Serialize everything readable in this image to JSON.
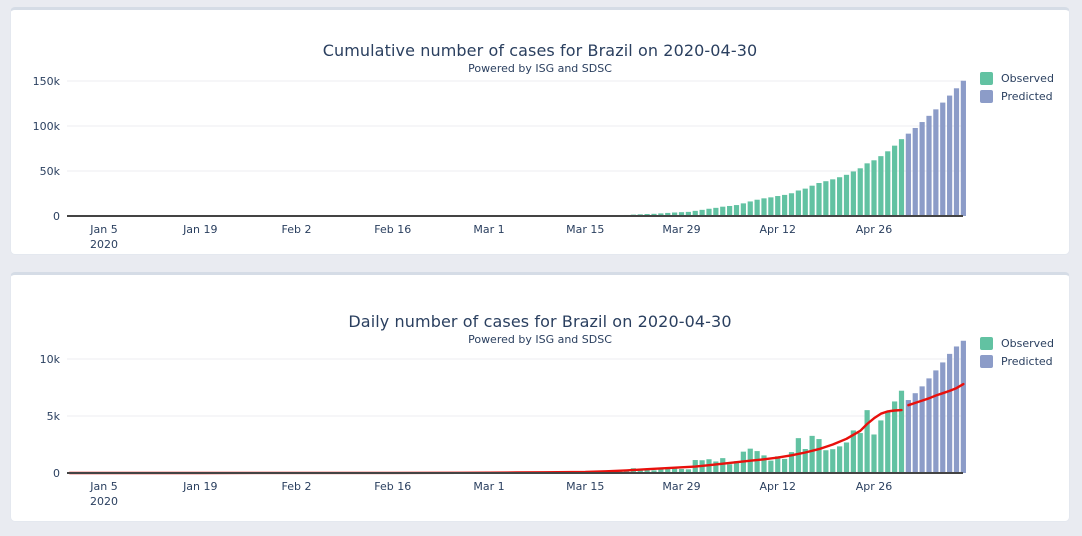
{
  "colors": {
    "observed": "#62c2a2",
    "predicted": "#8c9cc8",
    "trend": "#e8100c",
    "axis": "#444444",
    "grid": "#ececf1",
    "text": "#2a3f5f",
    "page_background": "#e9ebf1",
    "card_background": "#ffffff",
    "card_top_strip": "#d5dce6"
  },
  "chart_data": [
    {
      "type": "bar",
      "title": "Cumulative number of cases for Brazil on 2020-04-30",
      "subtitle": "Powered by ISG and SDSC",
      "xlabel": "",
      "ylabel": "",
      "grid": true,
      "legend_position": "top-right",
      "ylim": [
        0,
        157000
      ],
      "yticks": [
        {
          "value": 0,
          "label": "0"
        },
        {
          "value": 50000,
          "label": "50k"
        },
        {
          "value": 100000,
          "label": "100k"
        },
        {
          "value": 150000,
          "label": "150k"
        }
      ],
      "xticks": [
        {
          "date": "2020-01-05",
          "label": "Jan 5",
          "sublabel": "2020"
        },
        {
          "date": "2020-01-19",
          "label": "Jan 19"
        },
        {
          "date": "2020-02-02",
          "label": "Feb 2"
        },
        {
          "date": "2020-02-16",
          "label": "Feb 16"
        },
        {
          "date": "2020-03-01",
          "label": "Mar 1"
        },
        {
          "date": "2020-03-15",
          "label": "Mar 15"
        },
        {
          "date": "2020-03-29",
          "label": "Mar 29"
        },
        {
          "date": "2020-04-12",
          "label": "Apr 12"
        },
        {
          "date": "2020-04-26",
          "label": "Apr 26"
        }
      ],
      "series": [
        {
          "name": "Observed",
          "color_key": "observed",
          "start_date": "2020-02-26",
          "values": [
            1,
            1,
            1,
            2,
            2,
            2,
            2,
            4,
            4,
            13,
            20,
            25,
            25,
            34,
            52,
            77,
            151,
            151,
            200,
            234,
            346,
            529,
            654,
            904,
            1128,
            1546,
            1891,
            2201,
            2433,
            2915,
            3417,
            3904,
            4256,
            4579,
            5717,
            6836,
            8044,
            9056,
            10360,
            11130,
            12161,
            14034,
            16170,
            18092,
            19638,
            20727,
            22192,
            23430,
            25262,
            28320,
            30425,
            33682,
            36658,
            38654,
            40743,
            43079,
            45757,
            49492,
            52995,
            58509,
            61888,
            66501,
            71886,
            78162,
            85380
          ]
        },
        {
          "name": "Predicted",
          "color_key": "predicted",
          "start_date": "2020-05-01",
          "values": [
            91500,
            97800,
            104400,
            111300,
            118500,
            126000,
            133800,
            141900,
            150300
          ]
        }
      ]
    },
    {
      "type": "bar",
      "title": "Daily number of cases for Brazil on 2020-04-30",
      "subtitle": "Powered by ISG and SDSC",
      "xlabel": "",
      "ylabel": "",
      "grid": true,
      "legend_position": "top-right",
      "ylim": [
        0,
        12000
      ],
      "yticks": [
        {
          "value": 0,
          "label": "0"
        },
        {
          "value": 5000,
          "label": "5k"
        },
        {
          "value": 10000,
          "label": "10k"
        }
      ],
      "xticks": [
        {
          "date": "2020-01-05",
          "label": "Jan 5",
          "sublabel": "2020"
        },
        {
          "date": "2020-01-19",
          "label": "Jan 19"
        },
        {
          "date": "2020-02-02",
          "label": "Feb 2"
        },
        {
          "date": "2020-02-16",
          "label": "Feb 16"
        },
        {
          "date": "2020-03-01",
          "label": "Mar 1"
        },
        {
          "date": "2020-03-15",
          "label": "Mar 15"
        },
        {
          "date": "2020-03-29",
          "label": "Mar 29"
        },
        {
          "date": "2020-04-12",
          "label": "Apr 12"
        },
        {
          "date": "2020-04-26",
          "label": "Apr 26"
        }
      ],
      "series": [
        {
          "name": "Observed",
          "color_key": "observed",
          "start_date": "2020-02-26",
          "values": [
            1,
            0,
            0,
            1,
            0,
            0,
            0,
            2,
            0,
            9,
            7,
            5,
            0,
            9,
            18,
            25,
            74,
            0,
            49,
            34,
            112,
            183,
            125,
            250,
            224,
            418,
            345,
            310,
            232,
            482,
            502,
            487,
            352,
            323,
            1138,
            1119,
            1208,
            1012,
            1304,
            770,
            1031,
            1873,
            2136,
            1922,
            1546,
            1089,
            1465,
            1238,
            1832,
            3058,
            2105,
            3257,
            2976,
            1996,
            2089,
            2336,
            2678,
            3735,
            3503,
            5514,
            3379,
            4613,
            5385,
            6276,
            7218
          ]
        },
        {
          "name": "Predicted",
          "color_key": "predicted",
          "start_date": "2020-05-01",
          "values": [
            6400,
            7000,
            7600,
            8300,
            9000,
            9700,
            10450,
            11100,
            11600
          ]
        }
      ],
      "trend": {
        "name": "trend-line",
        "segments": [
          {
            "dates": [
              "2019-12-31",
              "2020-01-19",
              "2020-02-02",
              "2020-02-16",
              "2020-02-26",
              "2020-03-01",
              "2020-03-05",
              "2020-03-09",
              "2020-03-15",
              "2020-03-18",
              "2020-03-21",
              "2020-03-24",
              "2020-03-27",
              "2020-03-29",
              "2020-03-31",
              "2020-04-02",
              "2020-04-04",
              "2020-04-06",
              "2020-04-08",
              "2020-04-10",
              "2020-04-12",
              "2020-04-14",
              "2020-04-16",
              "2020-04-18",
              "2020-04-20",
              "2020-04-22",
              "2020-04-24",
              "2020-04-25",
              "2020-04-26",
              "2020-04-27",
              "2020-04-28",
              "2020-04-29",
              "2020-04-30"
            ],
            "values": [
              0,
              0,
              5,
              10,
              20,
              30,
              45,
              60,
              90,
              150,
              230,
              330,
              430,
              500,
              560,
              680,
              820,
              950,
              1080,
              1200,
              1350,
              1550,
              1800,
              2100,
              2500,
              3000,
              3700,
              4300,
              4800,
              5200,
              5400,
              5480,
              5520
            ]
          },
          {
            "dates": [
              "2020-05-01",
              "2020-05-02",
              "2020-05-03",
              "2020-05-04",
              "2020-05-05",
              "2020-05-06",
              "2020-05-07",
              "2020-05-08",
              "2020-05-09"
            ],
            "values": [
              5950,
              6150,
              6350,
              6550,
              6800,
              7000,
              7200,
              7450,
              7800
            ]
          }
        ]
      }
    }
  ]
}
